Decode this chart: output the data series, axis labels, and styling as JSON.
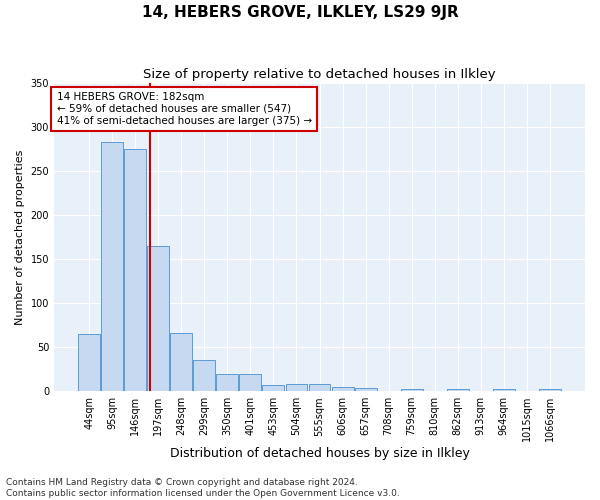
{
  "title": "14, HEBERS GROVE, ILKLEY, LS29 9JR",
  "subtitle": "Size of property relative to detached houses in Ilkley",
  "xlabel": "Distribution of detached houses by size in Ilkley",
  "ylabel": "Number of detached properties",
  "categories": [
    "44sqm",
    "95sqm",
    "146sqm",
    "197sqm",
    "248sqm",
    "299sqm",
    "350sqm",
    "401sqm",
    "453sqm",
    "504sqm",
    "555sqm",
    "606sqm",
    "657sqm",
    "708sqm",
    "759sqm",
    "810sqm",
    "862sqm",
    "913sqm",
    "964sqm",
    "1015sqm",
    "1066sqm"
  ],
  "values": [
    65,
    283,
    275,
    165,
    66,
    35,
    20,
    20,
    7,
    8,
    8,
    5,
    4,
    0,
    3,
    0,
    3,
    0,
    2,
    0,
    2
  ],
  "bar_color": "#c6d9f0",
  "bar_edge_color": "#5b9bd5",
  "background_color": "#e8f0fa",
  "grid_color": "#ffffff",
  "vline_color": "#cc0000",
  "vline_position": 2.65,
  "annotation_text": "14 HEBERS GROVE: 182sqm\n← 59% of detached houses are smaller (547)\n41% of semi-detached houses are larger (375) →",
  "annotation_box_color": "#ffffff",
  "annotation_box_edge_color": "#cc0000",
  "footer_text": "Contains HM Land Registry data © Crown copyright and database right 2024.\nContains public sector information licensed under the Open Government Licence v3.0.",
  "ylim": [
    0,
    350
  ],
  "title_fontsize": 11,
  "subtitle_fontsize": 9.5,
  "xlabel_fontsize": 9,
  "ylabel_fontsize": 8,
  "tick_fontsize": 7,
  "footer_fontsize": 6.5,
  "annotation_fontsize": 7.5
}
